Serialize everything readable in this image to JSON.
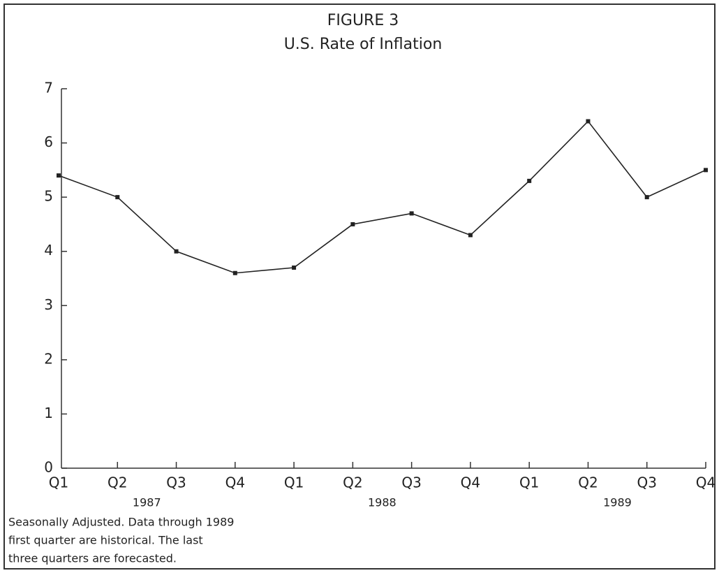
{
  "chart_data": {
    "type": "line",
    "title": "FIGURE 3",
    "subtitle": "U.S. Rate of Inflation",
    "categories": [
      "Q1",
      "Q2",
      "Q3",
      "Q4",
      "Q1",
      "Q2",
      "Q3",
      "Q4",
      "Q1",
      "Q2",
      "Q3",
      "Q4"
    ],
    "year_labels": [
      "1987",
      "1988",
      "1989"
    ],
    "series": [
      {
        "name": "U.S. Rate of Inflation",
        "color": "#222222",
        "values": [
          5.4,
          5.0,
          4.0,
          3.6,
          3.7,
          4.5,
          4.7,
          4.3,
          5.3,
          6.4,
          5.0,
          5.5
        ]
      }
    ],
    "ylim": [
      0,
      7
    ],
    "yticks": [
      0,
      1,
      2,
      3,
      4,
      5,
      6,
      7
    ],
    "grid": false,
    "note": [
      "Seasonally Adjusted.  Data through 1989",
      "first quarter are historical.  The last",
      "three quarters are forecasted."
    ]
  }
}
